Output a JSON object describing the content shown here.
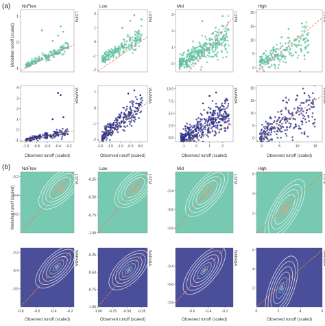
{
  "figure": {
    "section_labels": [
      "(a)",
      "(b)"
    ],
    "col_titles": [
      "NoFlow",
      "Low",
      "Mid",
      "High"
    ],
    "row_labels": [
      "LSTM",
      "WAPABA"
    ],
    "ylabel": "Modelled runoff (scaled)",
    "xlabel": "Observed runoff (scaled)",
    "colors": {
      "lstm": "#5fbfa3",
      "wapaba": "#2b2f86",
      "one_to_one": "#e8824a",
      "lstm_contour": "#f0a48a",
      "wapaba_contour": "#9fd9e6",
      "frame": "#9a9a9a"
    }
  },
  "chart_data": [
    {
      "section": "(a)",
      "type": "scatter",
      "title": "NoFlow",
      "model": "LSTM",
      "xlim": [
        -1.1,
        -0.1
      ],
      "ylim": [
        -1.15,
        1.25
      ],
      "xticks": [],
      "yticks": [
        -1,
        0,
        1
      ],
      "ytick_labels": [
        "-1",
        "0",
        "1"
      ],
      "cloud": {
        "x": [
          -1.0,
          -0.2
        ],
        "slope": 0.9,
        "intercept": 0.0,
        "spread": 0.07,
        "n": 180,
        "spikes": [
          [
            -0.4,
            0.25
          ],
          [
            -0.5,
            0.05
          ],
          [
            -0.35,
            0.6
          ],
          [
            -0.7,
            0.45
          ],
          [
            -0.3,
            0.4
          ]
        ]
      }
    },
    {
      "section": "(a)",
      "type": "scatter",
      "title": "Low",
      "model": "LSTM",
      "xlim": [
        -2.1,
        0.35
      ],
      "ylim": [
        -2.15,
        2.3
      ],
      "xticks": [],
      "yticks": [
        -2,
        -1,
        0,
        1,
        2
      ],
      "ytick_labels": [
        "-2",
        "-1",
        "0",
        "1",
        "2"
      ],
      "cloud": {
        "x": [
          -1.9,
          0.1
        ],
        "slope": 0.85,
        "intercept": 0.35,
        "spread": 0.25,
        "n": 230,
        "spikes": [
          [
            -0.5,
            1.5
          ],
          [
            -0.9,
            1.0
          ],
          [
            0.05,
            1.6
          ],
          [
            -0.3,
            1.9
          ]
        ]
      }
    },
    {
      "section": "(a)",
      "type": "scatter",
      "title": "Mid",
      "model": "LSTM",
      "xlim": [
        -1.5,
        2.8
      ],
      "ylim": [
        -0.5,
        3.3
      ],
      "xticks": [],
      "yticks": [
        0,
        1,
        2,
        3
      ],
      "ytick_labels": [
        "0",
        "1",
        "2",
        "3"
      ],
      "cloud": {
        "x": [
          -1.2,
          2.5
        ],
        "slope": 0.45,
        "intercept": 0.55,
        "spread": 0.35,
        "n": 380,
        "spikes": [
          [
            0.5,
            2.6
          ],
          [
            1.5,
            2.2
          ],
          [
            2.0,
            2.9
          ]
        ]
      }
    },
    {
      "section": "(a)",
      "type": "scatter",
      "title": "High",
      "model": "LSTM",
      "xlim": [
        -1.5,
        18
      ],
      "ylim": [
        -1.5,
        21
      ],
      "xticks": [],
      "yticks": [
        0,
        5,
        10,
        15,
        20
      ],
      "ytick_labels": [
        "0",
        "5",
        "10",
        "15",
        "20"
      ],
      "cloud": {
        "x": [
          -0.5,
          14
        ],
        "slope": 0.55,
        "intercept": 2.0,
        "spread": 2.2,
        "n": 220,
        "spikes": [
          [
            8,
            14
          ],
          [
            12,
            16
          ],
          [
            6,
            11
          ]
        ]
      }
    },
    {
      "section": "(a)",
      "type": "scatter",
      "title": "NoFlow",
      "model": "WAPABA",
      "xlim": [
        -1.1,
        -0.1
      ],
      "ylim": [
        -1.15,
        4.2
      ],
      "xticks": [
        -1.0,
        -0.8,
        -0.6,
        -0.4,
        -0.2
      ],
      "xtick_labels": [
        "-1.0",
        "-0.8",
        "-0.6",
        "-0.4",
        "-0.2"
      ],
      "yticks": [
        -1,
        0,
        1,
        2,
        3,
        4
      ],
      "ytick_labels": [
        "-1",
        "0",
        "1",
        "2",
        "3",
        "4"
      ],
      "cloud": {
        "x": [
          -1.0,
          -0.2
        ],
        "slope": 1.0,
        "intercept": 0.05,
        "spread": 0.15,
        "n": 170,
        "spikes": [
          [
            -0.4,
            3.5
          ],
          [
            -0.35,
            3.3
          ],
          [
            -0.5,
            1.0
          ],
          [
            -0.3,
            1.2
          ]
        ]
      }
    },
    {
      "section": "(a)",
      "type": "scatter",
      "title": "Low",
      "model": "WAPABA",
      "xlim": [
        -2.1,
        0.35
      ],
      "ylim": [
        -2.15,
        1.4
      ],
      "xticks": [
        -2.0,
        -1.5,
        -1.0,
        -0.5,
        0.0
      ],
      "xtick_labels": [
        "-2.0",
        "-1.5",
        "-1.0",
        "-0.5",
        "0.0"
      ],
      "yticks": [
        -2,
        -1,
        0,
        1
      ],
      "ytick_labels": [
        "-2",
        "-1",
        "0",
        "1"
      ],
      "cloud": {
        "x": [
          -1.9,
          0.1
        ],
        "slope": 1.0,
        "intercept": 0.1,
        "spread": 0.3,
        "n": 260,
        "spikes": [
          [
            -0.3,
            1.1
          ],
          [
            -0.6,
            0.9
          ],
          [
            0.0,
            0.8
          ]
        ]
      }
    },
    {
      "section": "(a)",
      "type": "scatter",
      "title": "Mid",
      "model": "WAPABA",
      "xlim": [
        -1.6,
        2.8
      ],
      "ylim": [
        -0.8,
        10.6
      ],
      "xticks": [
        -1,
        0,
        1,
        2
      ],
      "xtick_labels": [
        "-1",
        "0",
        "1",
        "2"
      ],
      "yticks": [
        0.0,
        2.5,
        5.0,
        7.5,
        10.0
      ],
      "ytick_labels": [
        "0.0",
        "2.5",
        "5.0",
        "7.5",
        "10.0"
      ],
      "cloud": {
        "x": [
          -1.2,
          2.5
        ],
        "slope": 1.5,
        "intercept": 1.4,
        "spread": 1.3,
        "n": 420,
        "spikes": [
          [
            1.0,
            8.5
          ],
          [
            1.5,
            9.2
          ],
          [
            0.5,
            7.0
          ],
          [
            2.0,
            6.5
          ]
        ]
      }
    },
    {
      "section": "(a)",
      "type": "scatter",
      "title": "High",
      "model": "WAPABA",
      "xlim": [
        -1.5,
        17
      ],
      "ylim": [
        -1.5,
        21
      ],
      "xticks": [
        0,
        5,
        10,
        15
      ],
      "xtick_labels": [
        "0",
        "5",
        "10",
        "15"
      ],
      "yticks": [
        0,
        5,
        10,
        15,
        20
      ],
      "ytick_labels": [
        "0",
        "5",
        "10",
        "15",
        "20"
      ],
      "cloud": {
        "x": [
          -0.5,
          15
        ],
        "slope": 0.8,
        "intercept": 1.0,
        "spread": 3.5,
        "n": 240,
        "spikes": [
          [
            10,
            17
          ],
          [
            12,
            18
          ],
          [
            6,
            15
          ],
          [
            14,
            14
          ]
        ]
      }
    },
    {
      "section": "(b)",
      "type": "contour",
      "title": "NoFlow",
      "model": "LSTM",
      "xlim": [
        -0.8,
        -0.15
      ],
      "ylim": [
        -0.8,
        -0.15
      ],
      "xticks": [],
      "yticks": [
        -0.6,
        -0.4,
        -0.2
      ],
      "ytick_labels": [
        "-0.6",
        "-0.4",
        "-0.2"
      ],
      "center": [
        -0.32,
        -0.32
      ],
      "angle": 45
    },
    {
      "section": "(b)",
      "type": "contour",
      "title": "Low",
      "model": "LSTM",
      "xlim": [
        -1.0,
        -0.15
      ],
      "ylim": [
        -1.0,
        -0.15
      ],
      "xticks": [],
      "yticks": [
        -1.0,
        -0.75,
        -0.5,
        -0.25
      ],
      "ytick_labels": [
        "-1.00",
        "-0.75",
        "-0.50",
        "-0.25"
      ],
      "center": [
        -0.37,
        -0.37
      ],
      "angle": 45
    },
    {
      "section": "(b)",
      "type": "contour",
      "title": "Mid",
      "model": "LSTM",
      "xlim": [
        -0.8,
        -0.1
      ],
      "ylim": [
        -0.85,
        -0.2
      ],
      "xticks": [],
      "yticks": [
        -0.8,
        -0.6,
        -0.4
      ],
      "ytick_labels": [
        "-0.8",
        "-0.6",
        "-0.4"
      ],
      "center": [
        -0.42,
        -0.42
      ],
      "angle": 50
    },
    {
      "section": "(b)",
      "type": "contour",
      "title": "High",
      "model": "LSTM",
      "xlim": [
        0,
        6
      ],
      "ylim": [
        0,
        6.2
      ],
      "xticks": [],
      "yticks": [
        2,
        4,
        6
      ],
      "ytick_labels": [
        "2",
        "4",
        "6"
      ],
      "center": [
        2.6,
        2.4
      ],
      "angle": 60
    },
    {
      "section": "(b)",
      "type": "contour",
      "title": "NoFlow",
      "model": "WAPABA",
      "xlim": [
        -0.8,
        -0.15
      ],
      "ylim": [
        -0.8,
        -0.15
      ],
      "xticks": [
        -0.8,
        -0.6,
        -0.4,
        -0.2
      ],
      "xtick_labels": [
        "-0.8",
        "-0.6",
        "-0.4",
        "-0.2"
      ],
      "yticks": [
        -0.6,
        -0.4,
        -0.2
      ],
      "ytick_labels": [
        "-0.6",
        "-0.4",
        "-0.2"
      ],
      "center": [
        -0.36,
        -0.36
      ],
      "angle": 45
    },
    {
      "section": "(b)",
      "type": "contour",
      "title": "Low",
      "model": "WAPABA",
      "xlim": [
        -1.0,
        -0.15
      ],
      "ylim": [
        -1.0,
        -0.15
      ],
      "xticks": [
        -1.0,
        -0.75,
        -0.5,
        -0.25
      ],
      "xtick_labels": [
        "-1.00",
        "-0.75",
        "-0.50",
        "-0.25"
      ],
      "yticks": [
        -1.0,
        -0.75,
        -0.5,
        -0.25
      ],
      "ytick_labels": [
        "-1.00",
        "-0.75",
        "-0.50",
        "-0.25"
      ],
      "center": [
        -0.47,
        -0.47
      ],
      "angle": 45
    },
    {
      "section": "(b)",
      "type": "contour",
      "title": "Mid",
      "model": "WAPABA",
      "xlim": [
        -0.8,
        -0.1
      ],
      "ylim": [
        -0.85,
        -0.2
      ],
      "xticks": [
        -0.6,
        -0.4,
        -0.2
      ],
      "xtick_labels": [
        "-0.6",
        "-0.4",
        "-0.2"
      ],
      "yticks": [
        -0.8,
        -0.6,
        -0.4
      ],
      "ytick_labels": [
        "-0.8",
        "-0.6",
        "-0.4"
      ],
      "center": [
        -0.45,
        -0.45
      ],
      "angle": 50
    },
    {
      "section": "(b)",
      "type": "contour",
      "title": "High",
      "model": "WAPABA",
      "xlim": [
        0,
        6
      ],
      "ylim": [
        0,
        6.2
      ],
      "xticks": [
        0,
        2,
        4,
        6
      ],
      "xtick_labels": [
        "0",
        "2",
        "4",
        "6"
      ],
      "yticks": [
        2,
        4,
        6
      ],
      "ytick_labels": [
        "2",
        "4",
        "6"
      ],
      "center": [
        2.3,
        2.0
      ],
      "angle": 70
    }
  ]
}
